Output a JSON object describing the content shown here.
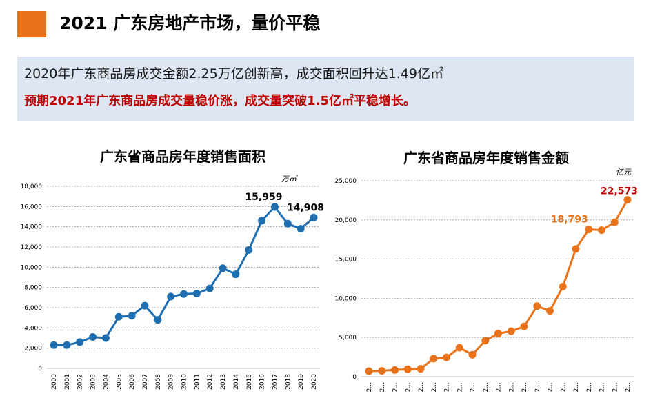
{
  "header": {
    "title": "2021 广东房地产市场，量价平稳",
    "accent_color": "#e8731a"
  },
  "summary": {
    "line1": "2020年广东商品房成交金额2.25万亿创新高，成交面积回升达1.49亿㎡",
    "line2": "预期2021年广东商品房成交量稳价涨，成交量突破1.5亿㎡平稳增长。",
    "line2_color": "#c00000"
  },
  "chart_data": [
    {
      "type": "line",
      "title": "广东省商品房年度销售面积",
      "unit": "万㎡",
      "color": "#1f6fb0",
      "categories": [
        "2000",
        "2001",
        "2002",
        "2003",
        "2004",
        "2005",
        "2006",
        "2007",
        "2008",
        "2009",
        "2010",
        "2011",
        "2012",
        "2013",
        "2014",
        "2015",
        "2016",
        "2017",
        "2018",
        "2019",
        "2020"
      ],
      "values": [
        2300,
        2300,
        2600,
        3100,
        3000,
        5100,
        5200,
        6200,
        4800,
        7100,
        7350,
        7400,
        7900,
        9900,
        9300,
        11700,
        14600,
        15959,
        14300,
        13800,
        14908
      ],
      "ylim": [
        0,
        18000
      ],
      "yticks": [
        "0",
        "2,000",
        "4,000",
        "6,000",
        "8,000",
        "10,000",
        "12,000",
        "14,000",
        "16,000",
        "18,000"
      ],
      "data_labels": [
        {
          "index": 17,
          "text": "15,959",
          "color": "#000000"
        },
        {
          "index": 20,
          "text": "14,908",
          "color": "#000000"
        }
      ]
    },
    {
      "type": "line",
      "title": "广东省商品房年度销售金额",
      "unit": "亿元",
      "color": "#e8731a",
      "categories": [
        "2...",
        "2...",
        "2...",
        "2...",
        "2...",
        "2...",
        "2...",
        "2...",
        "2...",
        "2...",
        "2...",
        "2...",
        "2...",
        "2...",
        "2...",
        "2...",
        "2...",
        "2...",
        "2...",
        "2...",
        "2..."
      ],
      "values": [
        700,
        750,
        850,
        950,
        1000,
        2300,
        2450,
        3700,
        2800,
        4600,
        5500,
        5800,
        6400,
        9000,
        8400,
        11500,
        16300,
        18793,
        18700,
        19700,
        22573
      ],
      "ylim": [
        0,
        25000
      ],
      "yticks": [
        "0",
        "5,000",
        "10,000",
        "15,000",
        "20,000",
        "25,000"
      ],
      "data_labels": [
        {
          "index": 17,
          "text": "18,793",
          "color": "#e8731a"
        },
        {
          "index": 20,
          "text": "22,573",
          "color": "#c00000"
        }
      ]
    }
  ]
}
